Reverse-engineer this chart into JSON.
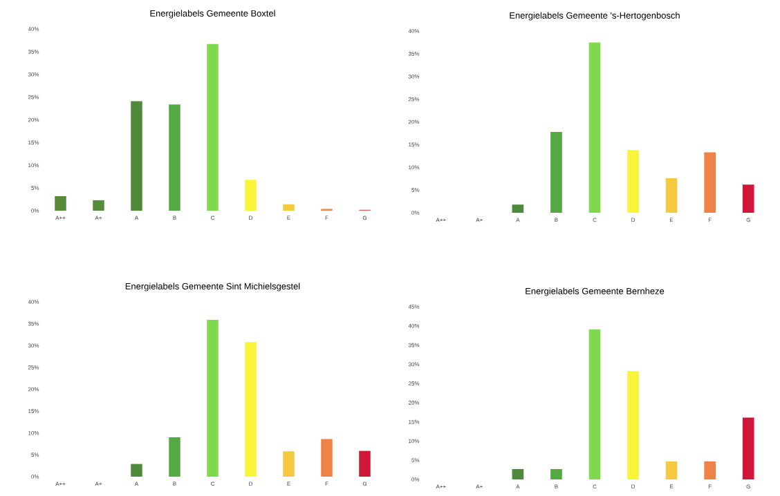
{
  "chart_data": [
    {
      "type": "bar",
      "title": "Energielabels Gemeente Boxtel",
      "categories": [
        "A++",
        "A+",
        "A",
        "B",
        "C",
        "D",
        "E",
        "F",
        "G"
      ],
      "values": [
        3.2,
        2.3,
        24.1,
        23.4,
        36.7,
        6.8,
        1.4,
        0.4,
        0.2
      ],
      "colors": [
        "#558b3b",
        "#558b3b",
        "#4f8a3a",
        "#56a844",
        "#7fd84e",
        "#f8f43a",
        "#f5c842",
        "#f08a55",
        "#e0605a"
      ],
      "ylim": [
        0,
        40
      ],
      "yticks": [
        {
          "value": 0,
          "label": "0%"
        },
        {
          "value": 5,
          "label": "5%"
        },
        {
          "value": 10,
          "label": "10%"
        },
        {
          "value": 15,
          "label": "15%"
        },
        {
          "value": 20,
          "label": "20%"
        },
        {
          "value": 25,
          "label": "25%"
        },
        {
          "value": 30,
          "label": "30%"
        },
        {
          "value": 35,
          "label": "35%"
        },
        {
          "value": 40,
          "label": "40%"
        }
      ]
    },
    {
      "type": "bar",
      "title": "Energielabels Gemeente 's-Hertogenbosch",
      "categories": [
        "A++",
        "A+",
        "A",
        "B",
        "C",
        "D",
        "E",
        "F",
        "G"
      ],
      "values": [
        0,
        0,
        1.8,
        17.8,
        37.5,
        13.8,
        7.6,
        13.3,
        6.2
      ],
      "colors": [
        "#558b3b",
        "#558b3b",
        "#4f8a3a",
        "#56a844",
        "#7fd84e",
        "#f8f43a",
        "#f5c842",
        "#ef8246",
        "#d0173a"
      ],
      "ylim": [
        0,
        40
      ],
      "yticks": [
        {
          "value": 0,
          "label": "0%"
        },
        {
          "value": 5,
          "label": "5%"
        },
        {
          "value": 10,
          "label": "10%"
        },
        {
          "value": 15,
          "label": "15%"
        },
        {
          "value": 20,
          "label": "20%"
        },
        {
          "value": 25,
          "label": "25%"
        },
        {
          "value": 30,
          "label": "30%"
        },
        {
          "value": 35,
          "label": "35%"
        },
        {
          "value": 40,
          "label": "40%"
        }
      ]
    },
    {
      "type": "bar",
      "title": "Energielabels Gemeente Sint Michielsgestel",
      "categories": [
        "A++",
        "A+",
        "A",
        "B",
        "C",
        "D",
        "E",
        "F",
        "G"
      ],
      "values": [
        0,
        0,
        2.9,
        9.0,
        35.9,
        30.8,
        5.8,
        8.6,
        5.9
      ],
      "colors": [
        "#558b3b",
        "#558b3b",
        "#4f8a3a",
        "#56a844",
        "#7fd84e",
        "#f8f43a",
        "#f5c842",
        "#ef8246",
        "#d0173a"
      ],
      "ylim": [
        0,
        40
      ],
      "yticks": [
        {
          "value": 0,
          "label": "0%"
        },
        {
          "value": 5,
          "label": "5%"
        },
        {
          "value": 10,
          "label": "10%"
        },
        {
          "value": 15,
          "label": "15%"
        },
        {
          "value": 20,
          "label": "20%"
        },
        {
          "value": 25,
          "label": "25%"
        },
        {
          "value": 30,
          "label": "30%"
        },
        {
          "value": 35,
          "label": "35%"
        },
        {
          "value": 40,
          "label": "40%"
        }
      ]
    },
    {
      "type": "bar",
      "title": "Energielabels Gemeente Bernheze",
      "categories": [
        "A++",
        "A+",
        "A",
        "B",
        "C",
        "D",
        "E",
        "F",
        "G"
      ],
      "values": [
        0,
        0,
        2.7,
        2.7,
        39.1,
        28.2,
        4.7,
        4.7,
        16.1
      ],
      "colors": [
        "#558b3b",
        "#558b3b",
        "#4f8a3a",
        "#56a844",
        "#7fd84e",
        "#f8f43a",
        "#f5c842",
        "#ef8246",
        "#d0173a"
      ],
      "ylim": [
        0,
        45
      ],
      "yticks": [
        {
          "value": 0,
          "label": "0%"
        },
        {
          "value": 5,
          "label": "5%"
        },
        {
          "value": 10,
          "label": "10%"
        },
        {
          "value": 15,
          "label": "15%"
        },
        {
          "value": 20,
          "label": "20%"
        },
        {
          "value": 25,
          "label": "25%"
        },
        {
          "value": 30,
          "label": "30%"
        },
        {
          "value": 35,
          "label": "35%"
        },
        {
          "value": 40,
          "label": "40%"
        },
        {
          "value": 45,
          "label": "45%"
        }
      ]
    }
  ]
}
